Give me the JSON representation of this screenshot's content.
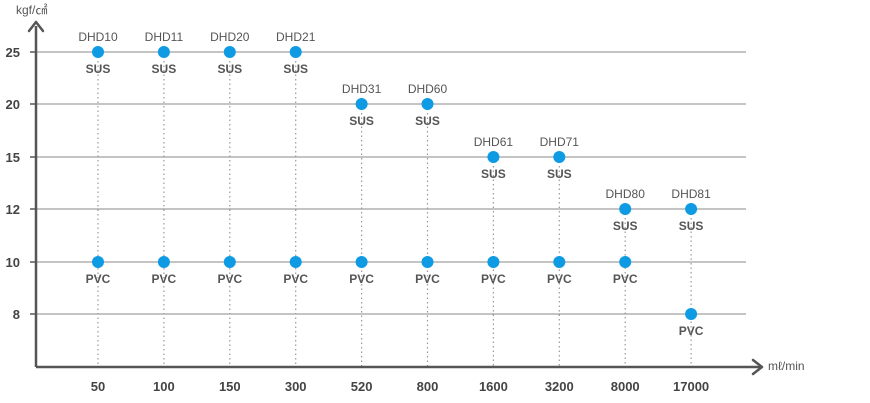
{
  "chart_data": {
    "type": "scatter",
    "x_unit": "mℓ/min",
    "y_unit": "kgf/㎠",
    "x_categories": [
      "50",
      "100",
      "150",
      "300",
      "520",
      "800",
      "1600",
      "3200",
      "8000",
      "17000"
    ],
    "y_ticks": [
      8,
      10,
      12,
      15,
      20,
      25
    ],
    "grid": true,
    "series": [
      {
        "name": "SUS",
        "points": [
          {
            "x": "50",
            "y": 25,
            "model": "DHD10"
          },
          {
            "x": "100",
            "y": 25,
            "model": "DHD11"
          },
          {
            "x": "150",
            "y": 25,
            "model": "DHD20"
          },
          {
            "x": "300",
            "y": 25,
            "model": "DHD21"
          },
          {
            "x": "520",
            "y": 20,
            "model": "DHD31"
          },
          {
            "x": "800",
            "y": 20,
            "model": "DHD60"
          },
          {
            "x": "1600",
            "y": 15,
            "model": "DHD61"
          },
          {
            "x": "3200",
            "y": 15,
            "model": "DHD71"
          },
          {
            "x": "8000",
            "y": 12,
            "model": "DHD80"
          },
          {
            "x": "17000",
            "y": 12,
            "model": "DHD81"
          }
        ]
      },
      {
        "name": "PVC",
        "points": [
          {
            "x": "50",
            "y": 10
          },
          {
            "x": "100",
            "y": 10
          },
          {
            "x": "150",
            "y": 10
          },
          {
            "x": "300",
            "y": 10
          },
          {
            "x": "520",
            "y": 10
          },
          {
            "x": "800",
            "y": 10
          },
          {
            "x": "1600",
            "y": 10
          },
          {
            "x": "3200",
            "y": 10
          },
          {
            "x": "8000",
            "y": 10
          },
          {
            "x": "17000",
            "y": 8
          }
        ]
      }
    ],
    "colors": {
      "marker": "#0f9be3",
      "axis": "#555555",
      "grid": "#888888",
      "guide": "#999999"
    }
  }
}
